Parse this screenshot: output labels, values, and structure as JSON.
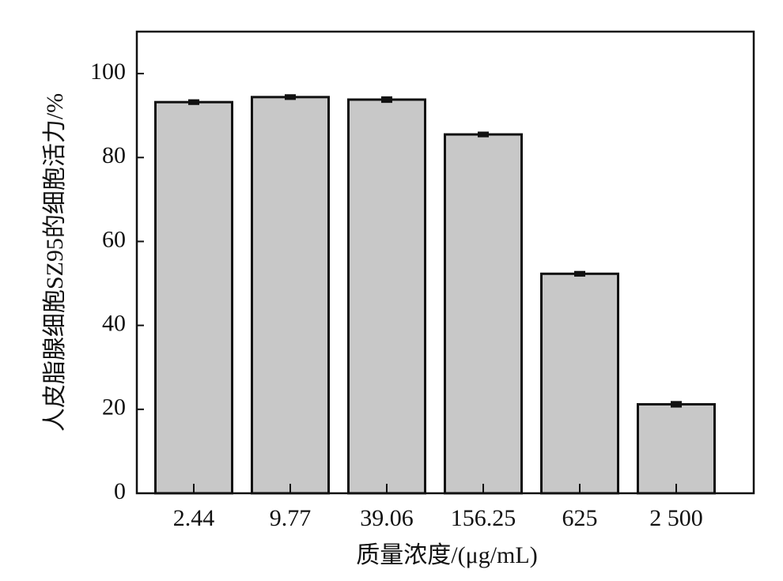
{
  "chart_data": {
    "type": "bar",
    "x_label": "质量浓度/(μg/mL)",
    "y_label": "人皮脂腺细胞SZ95的细胞活力/%",
    "categories": [
      "2.44",
      "9.77",
      "39.06",
      "156.25",
      "625",
      "2 500"
    ],
    "values": [
      93.2,
      94.4,
      93.8,
      85.5,
      52.3,
      21.2
    ],
    "errors": [
      0.3,
      0.3,
      0.4,
      0.3,
      0.3,
      0.4
    ],
    "color": "#c8c8c8",
    "ylim": [
      0,
      110
    ],
    "yticks": [
      0,
      20,
      40,
      60,
      80,
      100
    ]
  }
}
